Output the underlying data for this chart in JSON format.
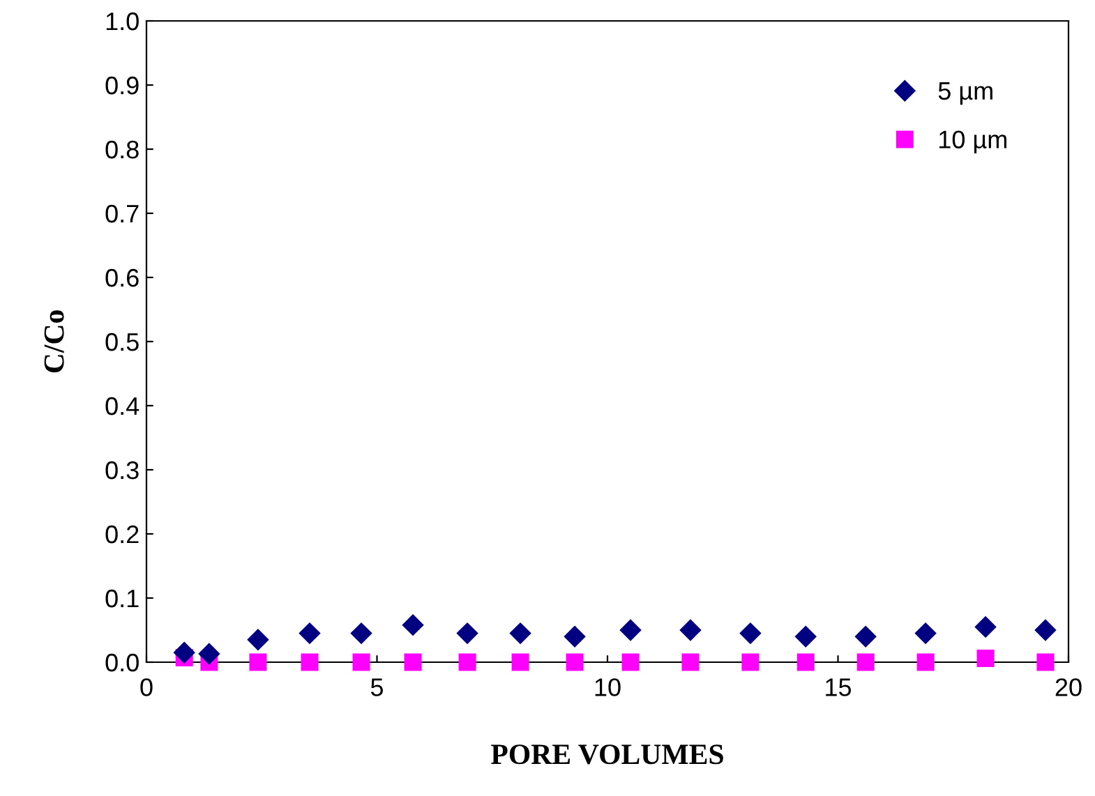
{
  "chart_data": {
    "type": "scatter",
    "xlabel": "PORE VOLUMES",
    "ylabel": "C/Co",
    "xlim": [
      0,
      20
    ],
    "xticks": [
      0,
      5,
      10,
      15,
      20
    ],
    "ylim": [
      0,
      1.0
    ],
    "yticks": [
      {
        "value": 0,
        "label": "0.0"
      },
      {
        "value": 0.1,
        "label": "0.1"
      },
      {
        "value": 0.2,
        "label": "0.2"
      },
      {
        "value": 0.3,
        "label": "0.3"
      },
      {
        "value": 0.4,
        "label": "0.4"
      },
      {
        "value": 0.5,
        "label": "0.5"
      },
      {
        "value": 0.6,
        "label": "0.6"
      },
      {
        "value": 0.7,
        "label": "0.7"
      },
      {
        "value": 0.8,
        "label": "0.8"
      },
      {
        "value": 0.9,
        "label": "0.9"
      },
      {
        "value": 1.0,
        "label": "1.0"
      }
    ],
    "x": [
      0.82,
      1.36,
      2.42,
      3.54,
      4.66,
      5.78,
      6.96,
      8.11,
      9.29,
      10.5,
      11.8,
      13.1,
      14.3,
      15.6,
      16.9,
      18.2,
      19.5
    ],
    "grid": false,
    "legend": "top right",
    "series": [
      {
        "name": "5 µm",
        "color": "#000080",
        "marker": "diamond",
        "values": [
          0.015,
          0.013,
          0.035,
          0.045,
          0.045,
          0.058,
          0.045,
          0.045,
          0.04,
          0.05,
          0.05,
          0.045,
          0.04,
          0.04,
          0.045,
          0.055,
          0.05
        ]
      },
      {
        "name": "10 µm",
        "color": "#ff00ff",
        "marker": "square",
        "values": [
          0.007,
          0.0,
          0.0,
          0.0,
          0.0,
          0.0,
          0.0,
          0.0,
          0.0,
          0.0,
          0.0,
          0.0,
          0.0,
          0.0,
          0.0,
          0.006,
          0.0
        ]
      }
    ]
  }
}
